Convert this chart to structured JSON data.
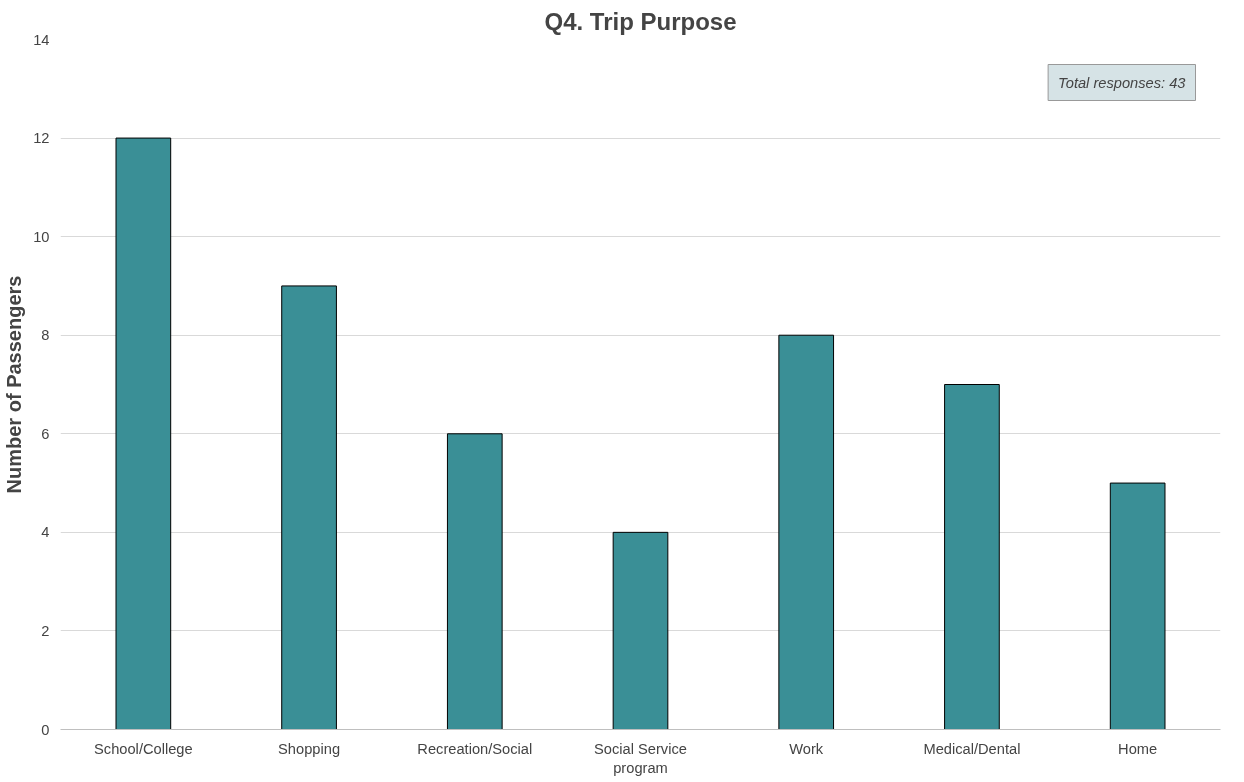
{
  "chart_data": {
    "type": "bar",
    "title": "Q4. Trip Purpose",
    "ylabel": "Number of Passengers",
    "categories": [
      "School/College",
      "Shopping",
      "Recreation/Social",
      "Social Service program",
      "Work",
      "Medical/Dental",
      "Home"
    ],
    "values": [
      12,
      9,
      6,
      4,
      8,
      7,
      5
    ],
    "color": "#3a8f96",
    "ylim": [
      0,
      14
    ],
    "yticks": [
      0,
      2,
      4,
      6,
      8,
      10,
      12,
      14
    ],
    "grid": "y",
    "annotations": [
      "Total responses: 43"
    ]
  }
}
